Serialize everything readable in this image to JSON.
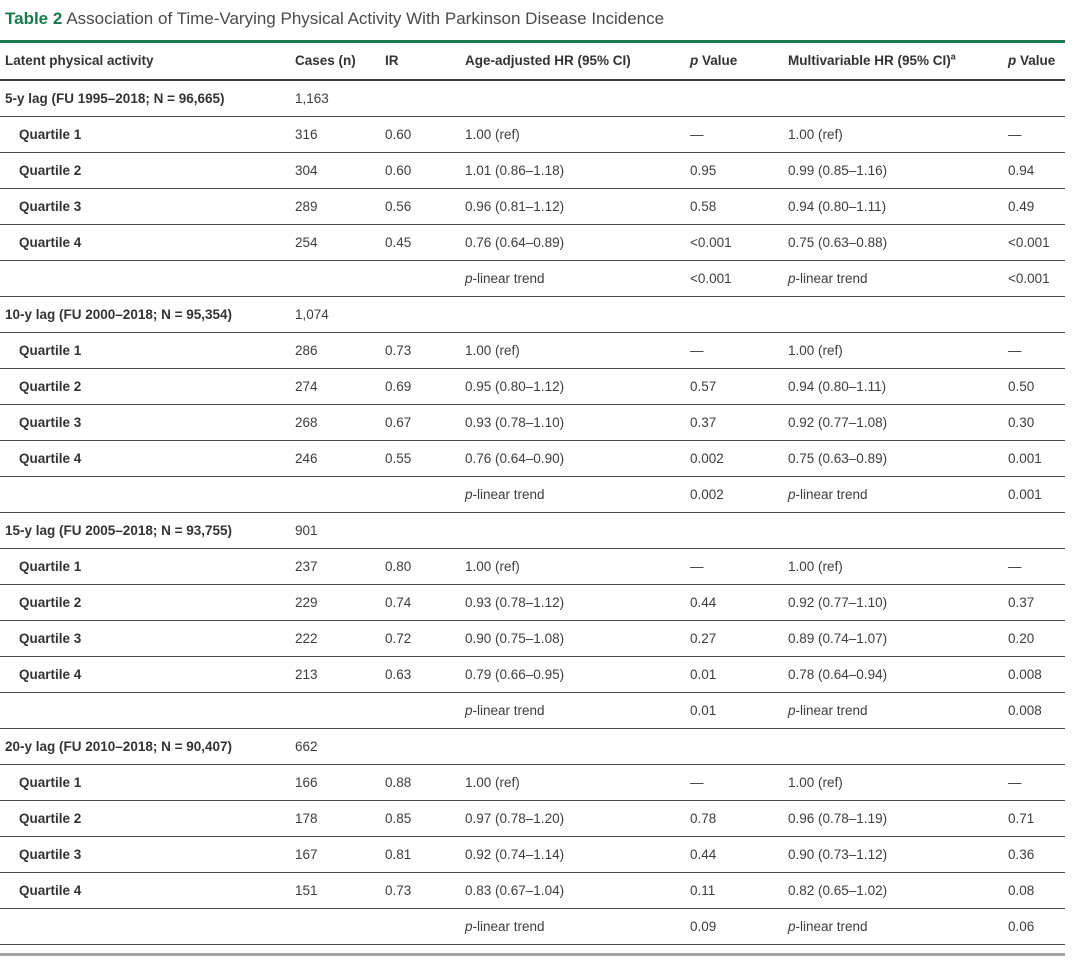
{
  "caption": {
    "label": "Table 2",
    "title": "Association of Time-Varying Physical Activity With Parkinson Disease Incidence"
  },
  "header": {
    "latent": "Latent physical activity",
    "cases": "Cases (n)",
    "ir": "IR",
    "age_hr": "Age-adjusted HR (95% CI)",
    "p_italic": "p",
    "p_word": "Value",
    "mv_hr": "Multivariable HR (95% CI)",
    "footnote_marker": "a"
  },
  "sections": [
    {
      "header": "5-y lag (FU 1995–2018; N = 96,665)",
      "cases": "1,163",
      "rows": [
        {
          "label": "Quartile 1",
          "cases": "316",
          "ir": "0.60",
          "age_hr": "1.00 (ref)",
          "p_age": "—",
          "mv_hr": "1.00 (ref)",
          "p_mv": "—"
        },
        {
          "label": "Quartile 2",
          "cases": "304",
          "ir": "0.60",
          "age_hr": "1.01 (0.86–1.18)",
          "p_age": "0.95",
          "mv_hr": "0.99 (0.85–1.16)",
          "p_mv": "0.94"
        },
        {
          "label": "Quartile 3",
          "cases": "289",
          "ir": "0.56",
          "age_hr": "0.96 (0.81–1.12)",
          "p_age": "0.58",
          "mv_hr": "0.94 (0.80–1.11)",
          "p_mv": "0.49"
        },
        {
          "label": "Quartile 4",
          "cases": "254",
          "ir": "0.45",
          "age_hr": "0.76 (0.64–0.89)",
          "p_age": "<0.001",
          "mv_hr": "0.75 (0.63–0.88)",
          "p_mv": "<0.001"
        }
      ],
      "trend": {
        "p": "p",
        "rest": "-linear trend",
        "p_age": "<0.001",
        "p_mv": "<0.001"
      }
    },
    {
      "header": "10-y lag (FU 2000–2018; N = 95,354)",
      "cases": "1,074",
      "rows": [
        {
          "label": "Quartile 1",
          "cases": "286",
          "ir": "0.73",
          "age_hr": "1.00 (ref)",
          "p_age": "—",
          "mv_hr": "1.00 (ref)",
          "p_mv": "—"
        },
        {
          "label": "Quartile 2",
          "cases": "274",
          "ir": "0.69",
          "age_hr": "0.95 (0.80–1.12)",
          "p_age": "0.57",
          "mv_hr": "0.94 (0.80–1.11)",
          "p_mv": "0.50"
        },
        {
          "label": "Quartile 3",
          "cases": "268",
          "ir": "0.67",
          "age_hr": "0.93 (0.78–1.10)",
          "p_age": "0.37",
          "mv_hr": "0.92 (0.77–1.08)",
          "p_mv": "0.30"
        },
        {
          "label": "Quartile 4",
          "cases": "246",
          "ir": "0.55",
          "age_hr": "0.76 (0.64–0.90)",
          "p_age": "0.002",
          "mv_hr": "0.75 (0.63–0.89)",
          "p_mv": "0.001"
        }
      ],
      "trend": {
        "p": "p",
        "rest": "-linear trend",
        "p_age": "0.002",
        "p_mv": "0.001"
      }
    },
    {
      "header": "15-y lag (FU 2005–2018; N = 93,755)",
      "cases": "901",
      "rows": [
        {
          "label": "Quartile 1",
          "cases": "237",
          "ir": "0.80",
          "age_hr": "1.00 (ref)",
          "p_age": "—",
          "mv_hr": "1.00 (ref)",
          "p_mv": "—"
        },
        {
          "label": "Quartile 2",
          "cases": "229",
          "ir": "0.74",
          "age_hr": "0.93 (0.78–1.12)",
          "p_age": "0.44",
          "mv_hr": "0.92 (0.77–1.10)",
          "p_mv": "0.37"
        },
        {
          "label": "Quartile 3",
          "cases": "222",
          "ir": "0.72",
          "age_hr": "0.90 (0.75–1.08)",
          "p_age": "0.27",
          "mv_hr": "0.89 (0.74–1.07)",
          "p_mv": "0.20"
        },
        {
          "label": "Quartile 4",
          "cases": "213",
          "ir": "0.63",
          "age_hr": "0.79 (0.66–0.95)",
          "p_age": "0.01",
          "mv_hr": "0.78 (0.64–0.94)",
          "p_mv": "0.008"
        }
      ],
      "trend": {
        "p": "p",
        "rest": "-linear trend",
        "p_age": "0.01",
        "p_mv": "0.008"
      }
    },
    {
      "header": "20-y lag (FU 2010–2018; N = 90,407)",
      "cases": "662",
      "rows": [
        {
          "label": "Quartile 1",
          "cases": "166",
          "ir": "0.88",
          "age_hr": "1.00 (ref)",
          "p_age": "—",
          "mv_hr": "1.00 (ref)",
          "p_mv": "—"
        },
        {
          "label": "Quartile 2",
          "cases": "178",
          "ir": "0.85",
          "age_hr": "0.97 (0.78–1.20)",
          "p_age": "0.78",
          "mv_hr": "0.96 (0.78–1.19)",
          "p_mv": "0.71"
        },
        {
          "label": "Quartile 3",
          "cases": "167",
          "ir": "0.81",
          "age_hr": "0.92 (0.74–1.14)",
          "p_age": "0.44",
          "mv_hr": "0.90 (0.73–1.12)",
          "p_mv": "0.36"
        },
        {
          "label": "Quartile 4",
          "cases": "151",
          "ir": "0.73",
          "age_hr": "0.83 (0.67–1.04)",
          "p_age": "0.11",
          "mv_hr": "0.82 (0.65–1.02)",
          "p_mv": "0.08"
        }
      ],
      "trend": {
        "p": "p",
        "rest": "-linear trend",
        "p_age": "0.09",
        "p_mv": "0.06"
      }
    }
  ]
}
